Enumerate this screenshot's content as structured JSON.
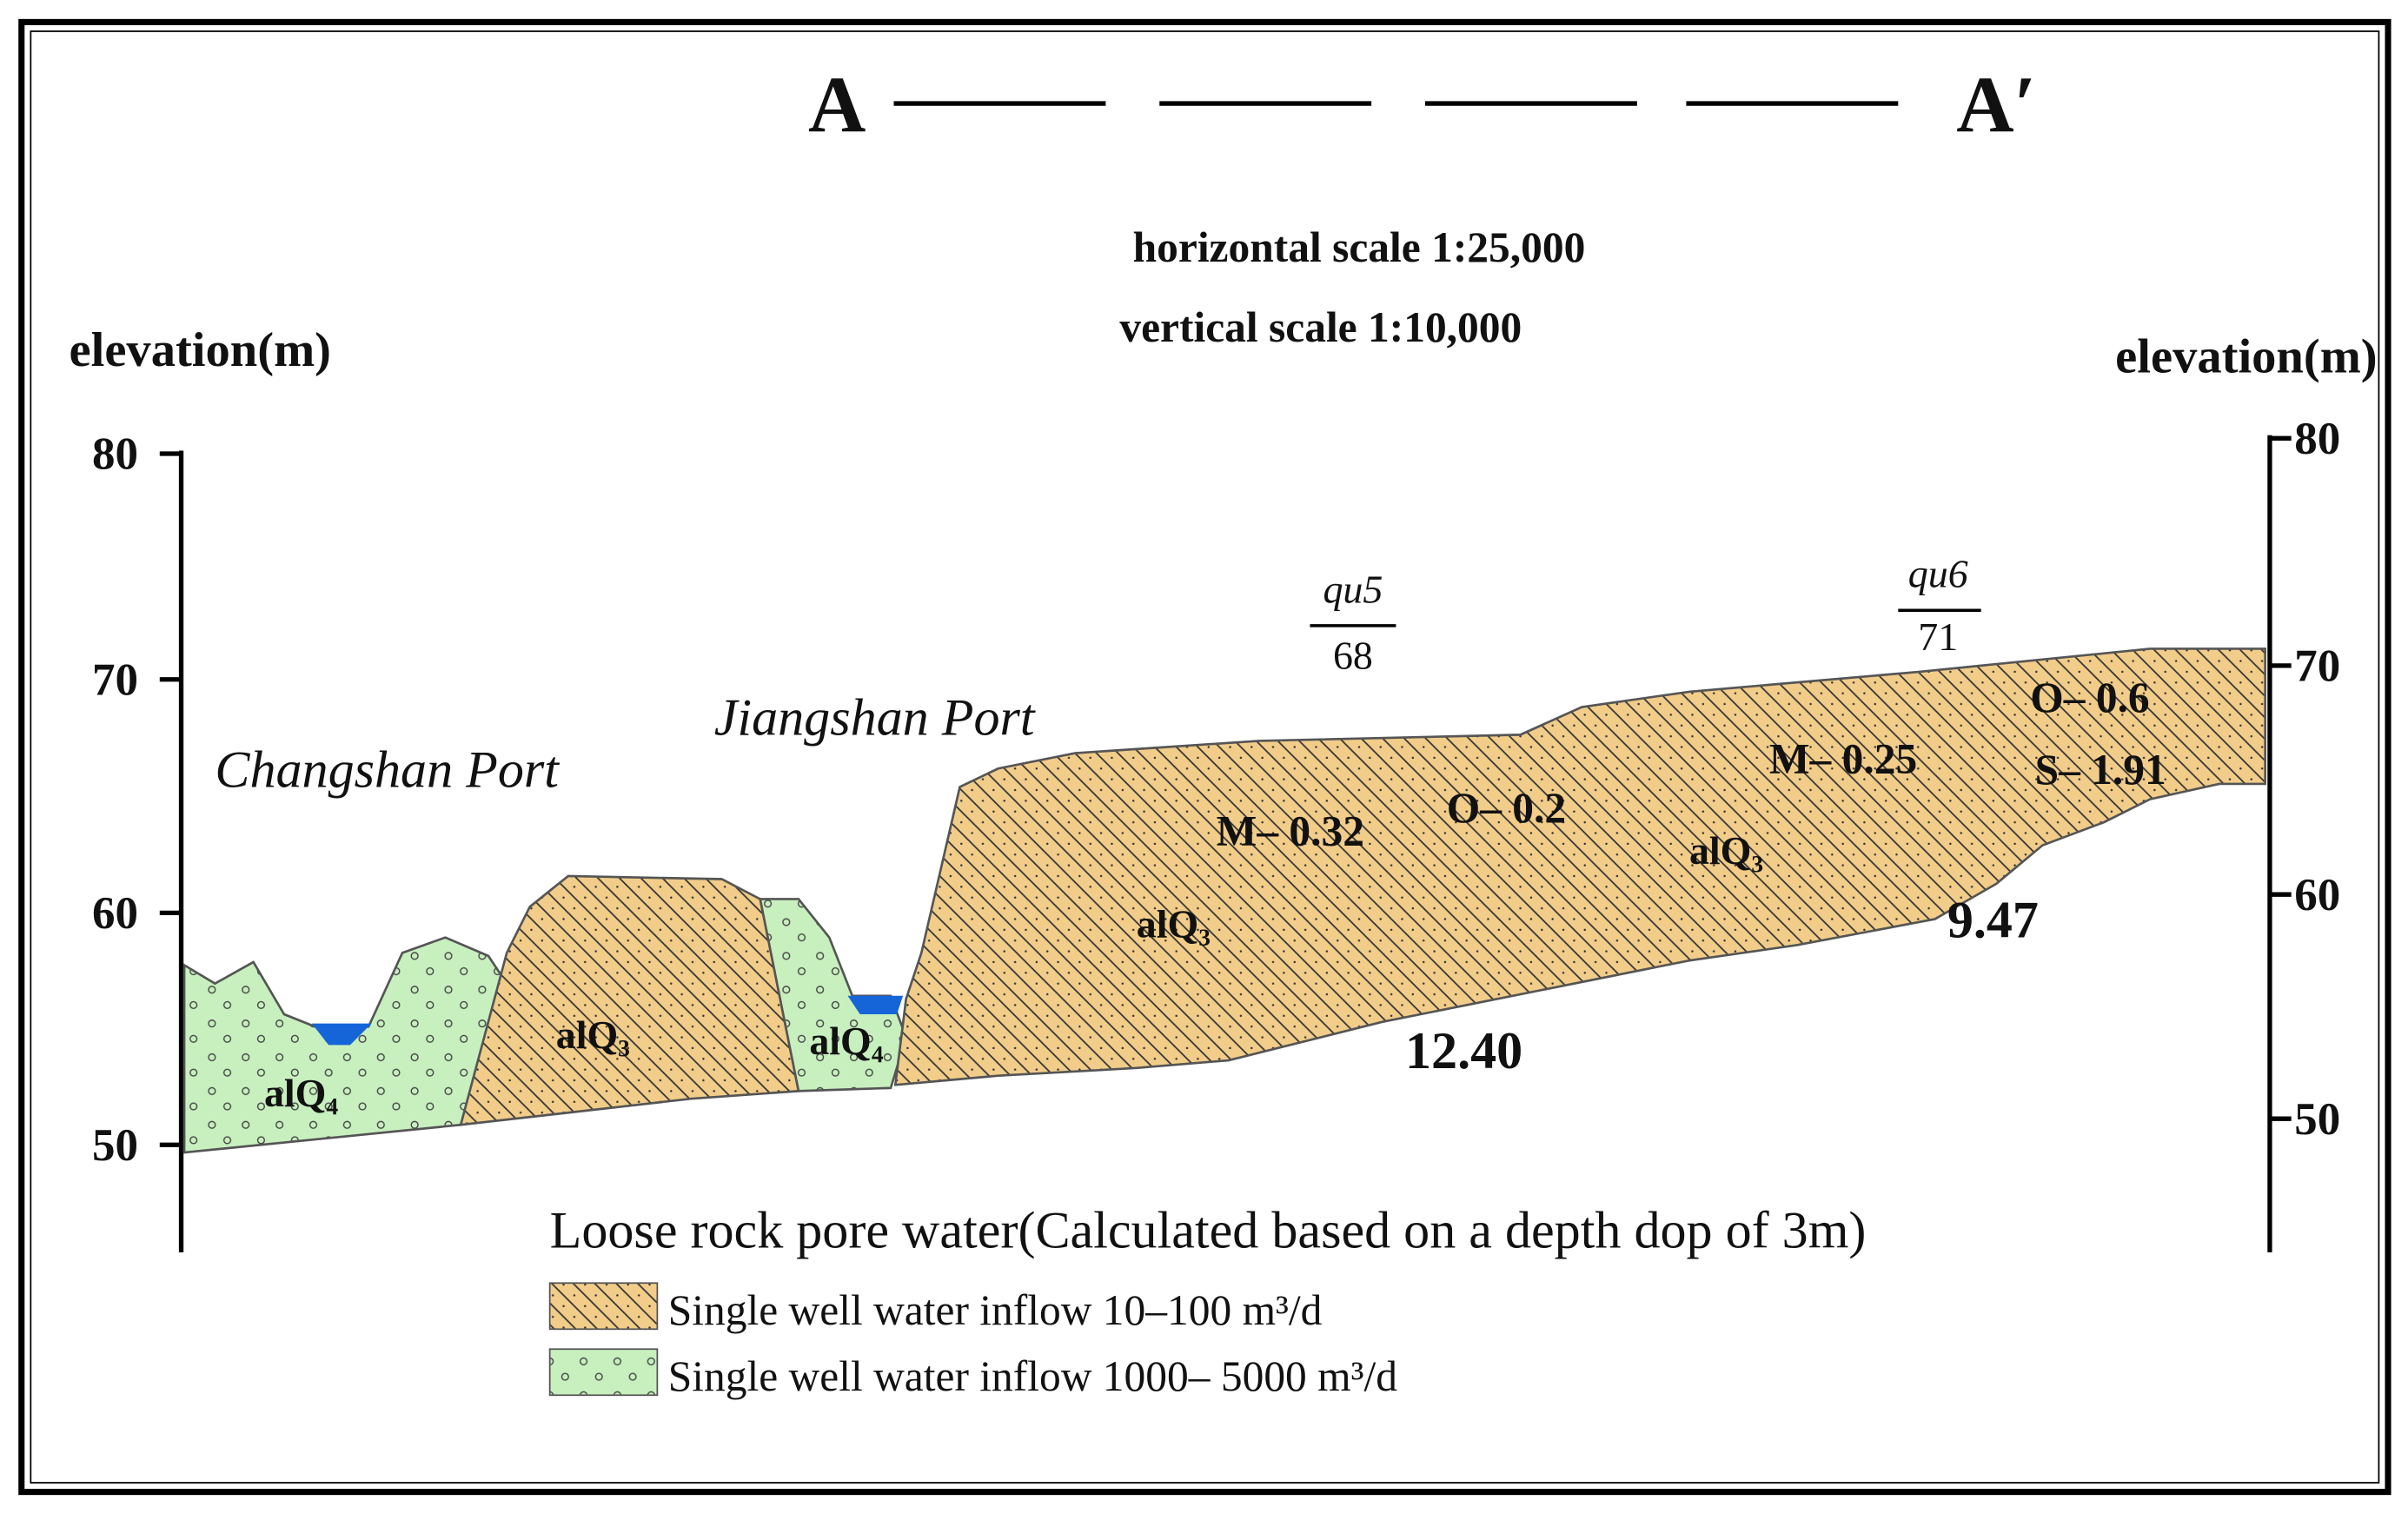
{
  "header": {
    "start": "A",
    "end": "A′",
    "horizontal_scale": "horizontal scale 1:25,000",
    "vertical_scale": "vertical scale 1:10,000"
  },
  "left_axis": {
    "label": "elevation(m)",
    "ticks": [
      "80",
      "70",
      "60",
      "50"
    ]
  },
  "right_axis": {
    "label": "elevation(m)",
    "ticks": [
      "80",
      "70",
      "60",
      "50"
    ]
  },
  "places": [
    "Changshan Port",
    "Jiangshan Port"
  ],
  "wells": [
    {
      "name": "qu5",
      "value": "68"
    },
    {
      "name": "qu6",
      "value": "71"
    }
  ],
  "units": [
    "alQ₄",
    "alQ₃",
    "alQ₄",
    "alQ₃",
    "alQ₃"
  ],
  "annotations": [
    "M– 0.32",
    "O– 0.2",
    "M– 0.25",
    "O– 0.6",
    "S– 1.91",
    "12.40",
    "9.47"
  ],
  "legend": {
    "title": "Loose rock pore water(Calculated based on a depth dop of 3m)",
    "items": [
      "Single well water inflow 10–100 m³/d",
      "Single well water inflow 1000– 5000 m³/d"
    ]
  }
}
